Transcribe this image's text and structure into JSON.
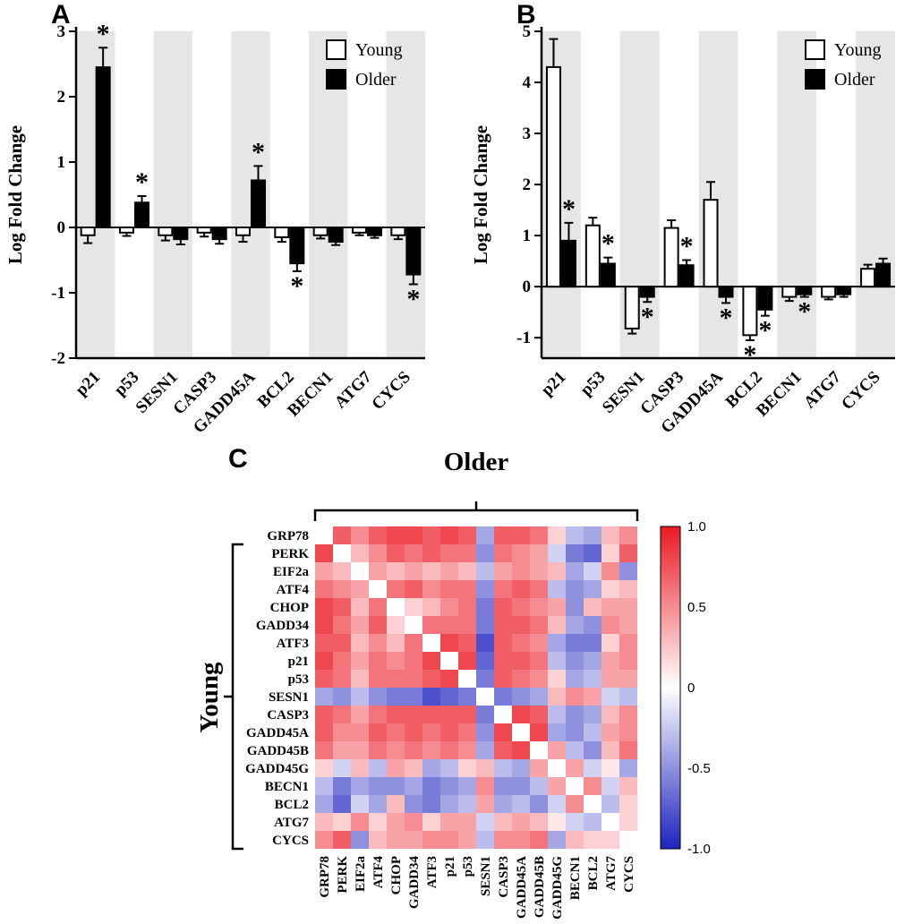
{
  "panels": {
    "a_label": "A",
    "b_label": "B",
    "c_label": "C"
  },
  "legend": {
    "young": "Young",
    "older": "Older"
  },
  "panelC": {
    "older_title": "Older",
    "young_title": "Young"
  },
  "colors": {
    "young_fill": "#ffffff",
    "older_fill": "#000000",
    "band_gray": "#e6e6e6",
    "axis_black": "#000000",
    "heat_red": "#eb1923",
    "heat_blue": "#1e23be",
    "heat_white": "#ffffff"
  },
  "chart_data": [
    {
      "id": "A",
      "type": "bar",
      "title": "",
      "ylabel": "Log Fold Change",
      "ylim": [
        -2,
        3
      ],
      "yticks": [
        -2,
        -1,
        0,
        1,
        2,
        3
      ],
      "legend_position": "top-right-inside",
      "categories": [
        "p21",
        "p53",
        "SESN1",
        "CASP3",
        "GADD45A",
        "BCL2",
        "BECN1",
        "ATG7",
        "CYCS"
      ],
      "series": [
        {
          "name": "Young",
          "values": [
            -0.12,
            -0.08,
            -0.12,
            -0.08,
            -0.12,
            -0.15,
            -0.12,
            -0.08,
            -0.12
          ],
          "errors": [
            0.12,
            0.05,
            0.08,
            0.06,
            0.1,
            0.07,
            0.05,
            0.04,
            0.06
          ],
          "stars": [
            null,
            null,
            null,
            null,
            null,
            null,
            null,
            null,
            null
          ]
        },
        {
          "name": "Older",
          "values": [
            2.45,
            0.38,
            -0.18,
            -0.18,
            0.72,
            -0.55,
            -0.22,
            -0.12,
            -0.72
          ],
          "errors": [
            0.3,
            0.1,
            0.08,
            0.07,
            0.22,
            0.12,
            0.05,
            0.04,
            0.15
          ],
          "stars": [
            "above",
            "above",
            null,
            null,
            "above",
            "below",
            null,
            null,
            "below"
          ]
        }
      ]
    },
    {
      "id": "B",
      "type": "bar",
      "title": "",
      "ylabel": "Log Fold Change",
      "ylim": [
        -1.4,
        5
      ],
      "yticks": [
        -1,
        0,
        1,
        2,
        3,
        4,
        5
      ],
      "legend_position": "top-right-inside",
      "categories": [
        "p21",
        "p53",
        "SESN1",
        "CASP3",
        "GADD45A",
        "BCL2",
        "BECN1",
        "ATG7",
        "CYCS"
      ],
      "series": [
        {
          "name": "Young",
          "values": [
            4.3,
            1.2,
            -0.82,
            1.15,
            1.7,
            -0.95,
            -0.2,
            -0.2,
            0.35
          ],
          "errors": [
            0.55,
            0.15,
            0.1,
            0.15,
            0.35,
            0.1,
            0.08,
            0.05,
            0.08
          ],
          "stars": [
            null,
            null,
            null,
            null,
            null,
            "below",
            null,
            null,
            null
          ]
        },
        {
          "name": "Older",
          "values": [
            0.9,
            0.45,
            -0.2,
            0.42,
            -0.2,
            -0.45,
            -0.15,
            -0.15,
            0.45
          ],
          "errors": [
            0.35,
            0.12,
            0.1,
            0.1,
            0.12,
            0.12,
            0.05,
            0.05,
            0.1
          ],
          "stars": [
            "above",
            "above",
            "below",
            "above",
            "below",
            "below",
            "below",
            null,
            null
          ]
        }
      ]
    },
    {
      "id": "C",
      "type": "heatmap",
      "row_title": "Young",
      "col_title": "Older",
      "labels": [
        "GRP78",
        "PERK",
        "EIF2a",
        "ATF4",
        "CHOP",
        "GADD34",
        "ATF3",
        "p21",
        "p53",
        "SESN1",
        "CASP3",
        "GADD45A",
        "GADD45B",
        "GADD45G",
        "BECN1",
        "BCL2",
        "ATG7",
        "CYCS"
      ],
      "colorbar": {
        "min": -1.0,
        "max": 1.0,
        "ticks": [
          "1.0",
          "0.5",
          "0",
          "-0.5",
          "-1.0"
        ]
      },
      "values": [
        [
          0,
          0.7,
          0.5,
          0.7,
          0.8,
          0.8,
          0.7,
          0.8,
          0.7,
          -0.4,
          0.7,
          0.7,
          0.6,
          0.2,
          -0.3,
          -0.4,
          0.3,
          0.5
        ],
        [
          0.8,
          0,
          0.3,
          0.5,
          0.7,
          0.6,
          0.7,
          0.6,
          0.6,
          -0.5,
          0.6,
          0.5,
          0.4,
          -0.2,
          -0.6,
          -0.7,
          0.2,
          0.7
        ],
        [
          0.4,
          0.3,
          0,
          0.4,
          0.3,
          0.4,
          0.3,
          0.4,
          0.3,
          -0.3,
          0.4,
          0.5,
          0.4,
          0.3,
          -0.4,
          -0.2,
          0.5,
          -0.5
        ],
        [
          0.6,
          0.5,
          0.4,
          0,
          0.6,
          0.7,
          0.5,
          0.6,
          0.6,
          -0.5,
          0.6,
          0.7,
          0.6,
          -0.3,
          -0.5,
          -0.4,
          0.2,
          0.3
        ],
        [
          0.8,
          0.7,
          0.3,
          0.6,
          0,
          0.2,
          0.3,
          0.5,
          0.6,
          -0.6,
          0.7,
          0.6,
          0.5,
          0.4,
          -0.5,
          0.3,
          0.4,
          0.4
        ],
        [
          0.8,
          0.6,
          0.4,
          0.7,
          0.2,
          0,
          0.6,
          0.6,
          0.6,
          -0.6,
          0.7,
          0.7,
          0.6,
          0.3,
          -0.4,
          -0.5,
          0.5,
          0.4
        ],
        [
          0.7,
          0.7,
          0.3,
          0.5,
          0.3,
          0.6,
          0,
          0.8,
          0.7,
          -0.8,
          0.7,
          0.6,
          0.5,
          -0.4,
          -0.6,
          -0.6,
          0.2,
          0.5
        ],
        [
          0.8,
          0.6,
          0.4,
          0.6,
          0.5,
          0.6,
          0.8,
          0,
          0.8,
          -0.7,
          0.7,
          0.7,
          0.6,
          -0.3,
          -0.5,
          -0.4,
          0.4,
          0.5
        ],
        [
          0.7,
          0.6,
          0.3,
          0.6,
          0.6,
          0.6,
          0.7,
          0.8,
          0,
          -0.6,
          0.7,
          0.6,
          0.5,
          0.2,
          -0.4,
          -0.3,
          0.4,
          0.4
        ],
        [
          -0.4,
          -0.5,
          -0.3,
          -0.5,
          -0.6,
          -0.6,
          -0.8,
          -0.7,
          -0.6,
          0,
          -0.6,
          -0.5,
          -0.4,
          0.3,
          0.5,
          0.4,
          -0.2,
          -0.3
        ],
        [
          0.7,
          0.6,
          0.4,
          0.6,
          0.7,
          0.7,
          0.7,
          0.7,
          0.7,
          -0.6,
          0,
          0.8,
          0.7,
          -0.3,
          -0.5,
          -0.4,
          0.3,
          0.5
        ],
        [
          0.7,
          0.5,
          0.5,
          0.7,
          0.6,
          0.7,
          0.6,
          0.7,
          0.6,
          -0.5,
          0.8,
          0,
          0.8,
          -0.4,
          -0.5,
          -0.3,
          0.4,
          0.5
        ],
        [
          0.6,
          0.4,
          0.4,
          0.6,
          0.5,
          0.6,
          0.5,
          0.6,
          0.5,
          -0.4,
          0.7,
          0.8,
          0,
          0.4,
          -0.3,
          -0.5,
          0.3,
          0.6
        ],
        [
          0.2,
          -0.2,
          0.3,
          -0.3,
          0.4,
          0.3,
          -0.4,
          -0.3,
          0.2,
          0.3,
          -0.3,
          -0.4,
          0.4,
          0,
          0.4,
          -0.2,
          0.1,
          -0.4
        ],
        [
          -0.3,
          -0.6,
          -0.4,
          -0.5,
          -0.5,
          -0.4,
          -0.6,
          -0.5,
          -0.4,
          0.5,
          -0.5,
          -0.5,
          -0.3,
          0.4,
          0,
          0.5,
          -0.2,
          0.3
        ],
        [
          -0.4,
          -0.7,
          -0.2,
          -0.4,
          0.3,
          -0.5,
          -0.6,
          -0.4,
          -0.3,
          0.4,
          -0.4,
          -0.3,
          -0.5,
          -0.2,
          0.5,
          0,
          -0.3,
          0.2
        ],
        [
          0.3,
          0.2,
          0.5,
          0.2,
          0.4,
          0.5,
          0.2,
          0.4,
          0.4,
          -0.2,
          0.3,
          0.4,
          0.3,
          0.1,
          -0.2,
          -0.3,
          0,
          0.2
        ],
        [
          0.5,
          0.7,
          -0.5,
          0.3,
          0.4,
          0.4,
          0.5,
          0.5,
          0.4,
          -0.3,
          0.5,
          0.5,
          0.6,
          -0.4,
          0.3,
          0.2,
          0.2,
          0
        ]
      ]
    }
  ]
}
